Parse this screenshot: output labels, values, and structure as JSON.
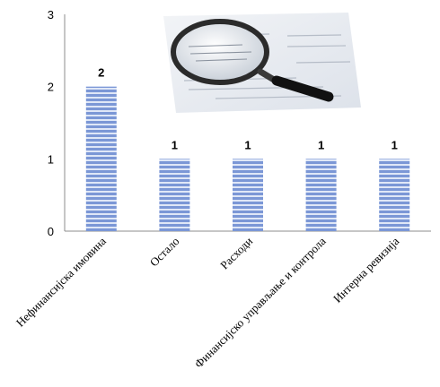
{
  "chart_data": {
    "type": "bar",
    "categories": [
      "Нефинансијска имовина",
      "Остало",
      "Расходи",
      "Финансијско управљање и контрола",
      "Интерна ревизија"
    ],
    "values": [
      2,
      1,
      1,
      1,
      1
    ],
    "data_labels": [
      "2",
      "1",
      "1",
      "1",
      "1"
    ],
    "yticks": [
      "0",
      "1",
      "2",
      "3"
    ],
    "ylim": [
      0,
      3
    ],
    "grid": false,
    "legend": "none",
    "title": "",
    "xlabel": "",
    "ylabel": "",
    "colors": {
      "bar": "#7b97d6",
      "bar_stripe": "#dfe7f7",
      "axis": "#8c8c8c"
    }
  },
  "decoration": {
    "icon": "magnifying-glass-over-document-icon"
  }
}
